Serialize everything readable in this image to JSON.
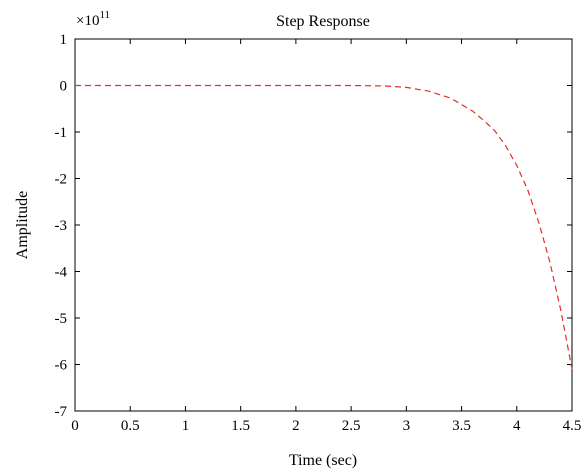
{
  "chart_data": {
    "type": "line",
    "title": "Step Response",
    "xlabel": "Time (sec)",
    "ylabel": "Amplitude",
    "y_exponent_base": "×10",
    "y_exponent_power": "11",
    "xlim": [
      0,
      4.5
    ],
    "ylim": [
      -7,
      1
    ],
    "x_ticks": [
      0,
      0.5,
      1,
      1.5,
      2,
      2.5,
      3,
      3.5,
      4,
      4.5
    ],
    "x_tick_labels": [
      "0",
      "0.5",
      "1",
      "1.5",
      "2",
      "2.5",
      "3",
      "3.5",
      "4",
      "4.5"
    ],
    "y_ticks": [
      1,
      0,
      -1,
      -2,
      -3,
      -4,
      -5,
      -6,
      -7
    ],
    "y_tick_labels": [
      "1",
      "0",
      "-1",
      "-2",
      "-3",
      "-4",
      "-5",
      "-6",
      "-7"
    ],
    "grid": false,
    "series": [
      {
        "line_style": "dashed",
        "color": "#e0302a",
        "x": [
          0,
          0.5,
          1,
          1.5,
          2,
          2.5,
          2.8,
          3.0,
          3.2,
          3.4,
          3.6,
          3.7,
          3.8,
          3.9,
          4.0,
          4.1,
          4.2,
          4.3,
          4.4,
          4.5
        ],
        "y": [
          0,
          0,
          0,
          0,
          0,
          0,
          -0.01,
          -0.04,
          -0.12,
          -0.27,
          -0.55,
          -0.75,
          -0.97,
          -1.3,
          -1.72,
          -2.25,
          -2.95,
          -3.8,
          -4.85,
          -6.1
        ]
      }
    ]
  }
}
